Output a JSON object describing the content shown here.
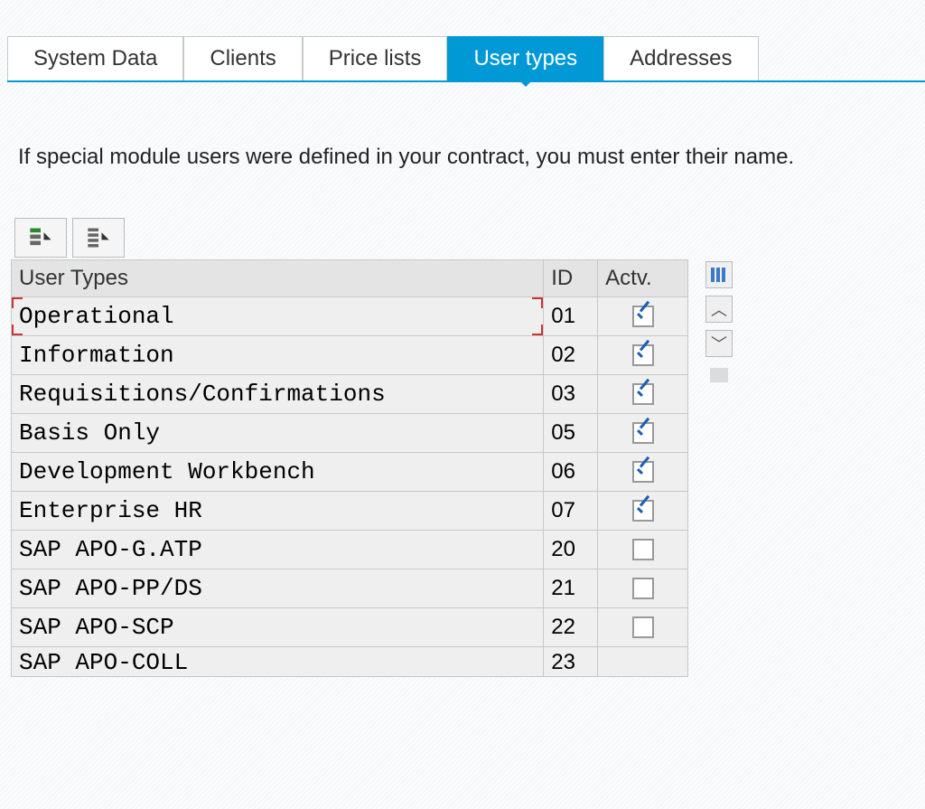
{
  "tabs": [
    {
      "label": "System Data",
      "active": false
    },
    {
      "label": "Clients",
      "active": false
    },
    {
      "label": "Price lists",
      "active": false
    },
    {
      "label": "User types",
      "active": true
    },
    {
      "label": "Addresses",
      "active": false
    }
  ],
  "info_text": "If special module users were defined in your contract, you must enter their name.",
  "table": {
    "columns": {
      "name": "User Types",
      "id": "ID",
      "actv": "Actv."
    },
    "rows": [
      {
        "name": "Operational",
        "id": "01",
        "actv": true,
        "selected": true
      },
      {
        "name": "Information",
        "id": "02",
        "actv": true
      },
      {
        "name": "Requisitions/Confirmations",
        "id": "03",
        "actv": true
      },
      {
        "name": "Basis Only",
        "id": "05",
        "actv": true
      },
      {
        "name": "Development Workbench",
        "id": "06",
        "actv": true
      },
      {
        "name": "Enterprise HR",
        "id": "07",
        "actv": true
      },
      {
        "name": "SAP APO-G.ATP",
        "id": "20",
        "actv": false
      },
      {
        "name": "SAP APO-PP/DS",
        "id": "21",
        "actv": false
      },
      {
        "name": "SAP APO-SCP",
        "id": "22",
        "actv": false
      }
    ],
    "partial_row": {
      "name": "SAP APO-COLL",
      "id": "23"
    }
  },
  "colors": {
    "accent": "#0099d6",
    "checkbox_check": "#1a5fb4",
    "selection_bracket": "#cc3333",
    "border": "#c8c8c8",
    "row_bg": "#efefef",
    "header_bg": "#e4e4e4"
  }
}
